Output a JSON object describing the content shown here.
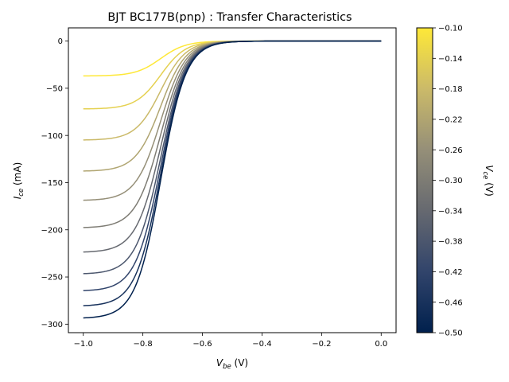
{
  "chart_data": {
    "type": "line",
    "title": "BJT BC177B(pnp) : Transfer Characteristics",
    "xlabel": {
      "var": "V",
      "sub": "be",
      "unit": " (V)"
    },
    "ylabel": {
      "var": "I",
      "sub": "ce",
      "unit": " (mA)"
    },
    "xlim": [
      -1.05,
      0.05
    ],
    "ylim": [
      -309,
      14
    ],
    "xticks": [
      -1.0,
      -0.8,
      -0.6,
      -0.4,
      -0.2,
      0.0
    ],
    "xtick_labels": [
      "−1.0",
      "−0.8",
      "−0.6",
      "−0.4",
      "−0.2",
      "0.0"
    ],
    "yticks": [
      0,
      -50,
      -100,
      -150,
      -200,
      -250,
      -300
    ],
    "ytick_labels": [
      "0",
      "−50",
      "−100",
      "−150",
      "−200",
      "−250",
      "−300"
    ],
    "colorbar": {
      "label": {
        "var": "V",
        "sub": "ce",
        "unit": " (V)"
      },
      "range": [
        -0.5,
        -0.1
      ],
      "ticks": [
        -0.1,
        -0.14,
        -0.18,
        -0.22,
        -0.26,
        -0.3,
        -0.34,
        -0.38,
        -0.42,
        -0.46,
        -0.5
      ],
      "tick_labels": [
        "−0.10",
        "−0.14",
        "−0.18",
        "−0.22",
        "−0.26",
        "−0.30",
        "−0.34",
        "−0.38",
        "−0.42",
        "−0.46",
        "−0.50"
      ],
      "colormap": "cividis",
      "colors": [
        "#00204d",
        "#31446b",
        "#666970",
        "#958f78",
        "#cbba69",
        "#fee838"
      ]
    },
    "series": [
      {
        "vce": -0.1,
        "i_at_vmin": -37,
        "min_v": -0.895,
        "min_i": -51
      },
      {
        "vce": -0.14,
        "i_at_vmin": -72,
        "min_v": -0.925,
        "min_i": -79
      },
      {
        "vce": -0.18,
        "i_at_vmin": -105,
        "min_v": -0.945,
        "min_i": -108
      },
      {
        "vce": -0.22,
        "i_at_vmin": -138,
        "min_v": -0.965,
        "min_i": -139
      },
      {
        "vce": -0.26,
        "i_at_vmin": -169,
        "min_v": -0.985,
        "min_i": -170
      },
      {
        "vce": -0.3,
        "i_at_vmin": -198,
        "min_v": -1.0,
        "min_i": -198
      },
      {
        "vce": -0.34,
        "i_at_vmin": -224,
        "min_v": -1.0,
        "min_i": -224
      },
      {
        "vce": -0.38,
        "i_at_vmin": -247,
        "min_v": -1.0,
        "min_i": -247
      },
      {
        "vce": -0.42,
        "i_at_vmin": -265,
        "min_v": -1.0,
        "min_i": -265
      },
      {
        "vce": -0.46,
        "i_at_vmin": -281,
        "min_v": -1.0,
        "min_i": -281
      },
      {
        "vce": -0.5,
        "i_at_vmin": -294,
        "min_v": -1.0,
        "min_i": -294
      }
    ]
  }
}
